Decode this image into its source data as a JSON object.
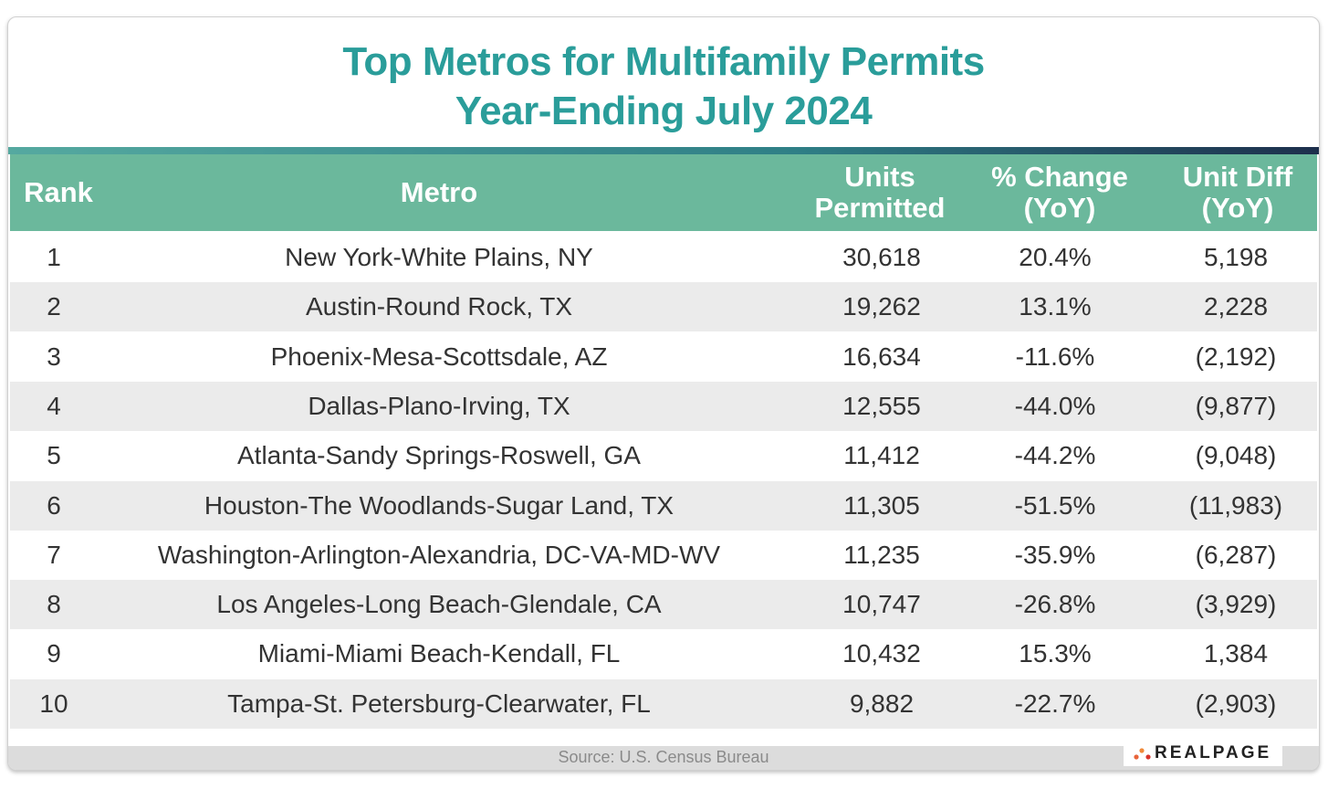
{
  "header": {
    "title_lines": [
      "Top Metros for Multifamily Permits",
      "Year-Ending July 2024"
    ]
  },
  "table": {
    "columns": [
      [
        "Rank"
      ],
      [
        "Metro"
      ],
      [
        "Units",
        "Permitted"
      ],
      [
        "% Change",
        "(YoY)"
      ],
      [
        "Unit Diff",
        "(YoY)"
      ]
    ],
    "rows": [
      [
        "1",
        "New York-White Plains, NY",
        "30,618",
        "20.4%",
        "5,198"
      ],
      [
        "2",
        "Austin-Round Rock, TX",
        "19,262",
        "13.1%",
        "2,228"
      ],
      [
        "3",
        "Phoenix-Mesa-Scottsdale, AZ",
        "16,634",
        "-11.6%",
        "(2,192)"
      ],
      [
        "4",
        "Dallas-Plano-Irving, TX",
        "12,555",
        "-44.0%",
        "(9,877)"
      ],
      [
        "5",
        "Atlanta-Sandy Springs-Roswell, GA",
        "11,412",
        "-44.2%",
        "(9,048)"
      ],
      [
        "6",
        "Houston-The Woodlands-Sugar Land, TX",
        "11,305",
        "-51.5%",
        "(11,983)"
      ],
      [
        "7",
        "Washington-Arlington-Alexandria, DC-VA-MD-WV",
        "11,235",
        "-35.9%",
        "(6,287)"
      ],
      [
        "8",
        "Los Angeles-Long Beach-Glendale, CA",
        "10,747",
        "-26.8%",
        "(3,929)"
      ],
      [
        "9",
        "Miami-Miami Beach-Kendall, FL",
        "10,432",
        "15.3%",
        "1,384"
      ],
      [
        "10",
        "Tampa-St. Petersburg-Clearwater, FL",
        "9,882",
        "-22.7%",
        "(2,903)"
      ]
    ]
  },
  "footer": {
    "source": "Source: U.S. Census Bureau",
    "logo": "REALPAGE"
  }
}
